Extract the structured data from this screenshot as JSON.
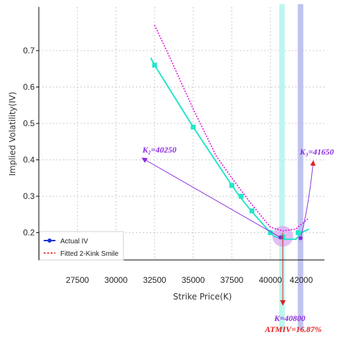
{
  "chart_data": {
    "type": "line",
    "xlabel": "Strike Price(K)",
    "ylabel": "Implied Volatility(IV)",
    "x_ticks": [
      27500,
      30000,
      32500,
      35000,
      37500,
      40000,
      42000
    ],
    "y_ticks": [
      0.2,
      0.3,
      0.4,
      0.5,
      0.6,
      0.7
    ],
    "x_range": [
      25000,
      43500
    ],
    "y_range": [
      0.125,
      0.82
    ],
    "grid": true,
    "legend_position": "bottom-left",
    "colors": {
      "actual": "#22e5c8",
      "actual_legend": "#1a33d6",
      "fitted": "#e020e0",
      "fitted_legend": "#e01c1c",
      "kink": "#8b2be0",
      "atm": "#e02020",
      "band_teal": "#b6f5ec",
      "band_blue": "#b9bbee",
      "circle": "#d9a8ef"
    },
    "series": [
      {
        "name": "Actual IV",
        "line": [
          [
            32250,
            0.68
          ],
          [
            32500,
            0.66
          ],
          [
            35000,
            0.49
          ],
          [
            37500,
            0.33
          ],
          [
            38000,
            0.3
          ],
          [
            38750,
            0.26
          ],
          [
            40000,
            0.2
          ],
          [
            40250,
            0.19
          ],
          [
            40800,
            0.182
          ],
          [
            41650,
            0.182
          ],
          [
            42000,
            0.2
          ],
          [
            42500,
            0.21
          ]
        ],
        "markers": [
          [
            32500,
            0.66
          ],
          [
            35000,
            0.49
          ],
          [
            37500,
            0.33
          ],
          [
            38100,
            0.3
          ],
          [
            38800,
            0.26
          ],
          [
            40000,
            0.2
          ],
          [
            40800,
            0.188
          ],
          [
            41800,
            0.2
          ]
        ]
      },
      {
        "name": "Fitted 2-Kink Smile",
        "line": [
          [
            32500,
            0.77
          ],
          [
            33500,
            0.68
          ],
          [
            35000,
            0.54
          ],
          [
            36500,
            0.41
          ],
          [
            37500,
            0.35
          ],
          [
            38750,
            0.28
          ],
          [
            40000,
            0.215
          ],
          [
            40800,
            0.205
          ],
          [
            41650,
            0.21
          ],
          [
            42200,
            0.23
          ],
          [
            42500,
            0.24
          ]
        ]
      }
    ],
    "annotations": [
      {
        "id": "k2",
        "label": "K₂=40250",
        "point": [
          40700,
          0.185
        ],
        "text_at": [
          32750,
          0.42
        ],
        "color": "kink"
      },
      {
        "id": "k3",
        "label": "K₃=41650",
        "point": [
          41650,
          0.185
        ],
        "text_at": [
          42750,
          0.42
        ],
        "color": "kink"
      },
      {
        "id": "k",
        "label": "K=40800",
        "point": [
          40800,
          0.2
        ],
        "text_at": [
          41000,
          0.09
        ],
        "color": "atm"
      },
      {
        "id": "atmiv",
        "label": "ATMIV=16.87%",
        "color": "atm"
      }
    ],
    "bands": [
      {
        "x": 40750,
        "color": "band_teal"
      },
      {
        "x": 41950,
        "color": "band_blue"
      }
    ]
  }
}
